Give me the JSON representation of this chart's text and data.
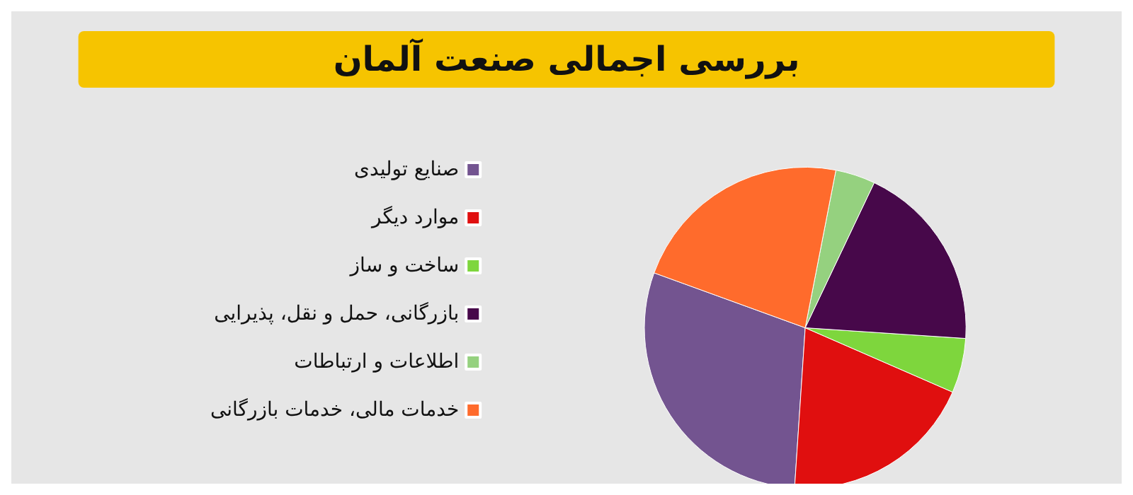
{
  "chart_data": {
    "type": "pie",
    "title": "بررسی اجمالی صنعت آلمان",
    "categories": [
      "صنایع تولیدی",
      "موارد دیگر",
      "ساخت و ساز",
      "بازرگانی، حمل و نقل، پذیرایی",
      "اطلاعات و ارتباطات",
      "خدمات مالی، خدمات بازرگانی"
    ],
    "values": [
      29.5,
      19.5,
      5.5,
      19,
      4,
      22.5
    ],
    "colors": [
      "#735490",
      "#e00f0f",
      "#7ed63d",
      "#47084a",
      "#95d17f",
      "#ff6b2c"
    ],
    "legend": "left"
  }
}
